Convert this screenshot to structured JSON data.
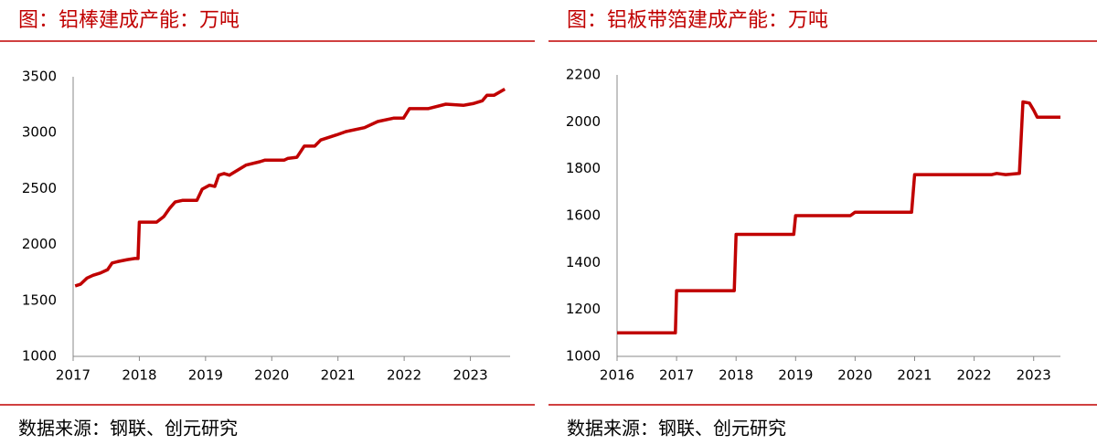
{
  "chart_data": [
    {
      "type": "line",
      "title": "图：铝棒建成产能：万吨",
      "source": "数据来源：钢联、创元研究",
      "color": "#c00000",
      "x": [
        2017.03,
        2017.11,
        2017.21,
        2017.3,
        2017.41,
        2017.52,
        2017.59,
        2017.69,
        2017.82,
        2017.93,
        2017.98,
        2018.0,
        2018.26,
        2018.37,
        2018.46,
        2018.54,
        2018.65,
        2018.87,
        2018.95,
        2019.06,
        2019.14,
        2019.2,
        2019.28,
        2019.36,
        2019.61,
        2019.82,
        2019.9,
        2020.19,
        2020.24,
        2020.38,
        2020.49,
        2020.65,
        2020.74,
        2020.98,
        2021.12,
        2021.4,
        2021.6,
        2021.84,
        2021.99,
        2022.08,
        2022.36,
        2022.63,
        2022.9,
        2023.04,
        2023.18,
        2023.25,
        2023.36,
        2023.52
      ],
      "series": [
        {
          "values": [
            1630,
            1645,
            1700,
            1725,
            1745,
            1775,
            1835,
            1850,
            1865,
            1875,
            1875,
            2200,
            2200,
            2250,
            2325,
            2380,
            2395,
            2395,
            2495,
            2530,
            2520,
            2620,
            2635,
            2620,
            2710,
            2740,
            2755,
            2755,
            2770,
            2780,
            2880,
            2880,
            2935,
            2980,
            3010,
            3045,
            3100,
            3130,
            3130,
            3215,
            3215,
            3255,
            3245,
            3260,
            3285,
            3335,
            3335,
            3390
          ]
        }
      ],
      "xlim": [
        2017,
        2023.6
      ],
      "xticks": [
        2017,
        2018,
        2019,
        2020,
        2021,
        2022,
        2023
      ],
      "ylim": [
        1000,
        3500
      ],
      "yticks": [
        1000,
        1500,
        2000,
        2500,
        3000,
        3500
      ]
    },
    {
      "type": "line",
      "title": "图：铝板带箔建成产能：万吨",
      "source": "数据来源：钢联、创元研究",
      "color": "#c00000",
      "x": [
        2016.0,
        2016.98,
        2017.0,
        2017.97,
        2018.0,
        2018.97,
        2019.0,
        2019.92,
        2020.0,
        2020.95,
        2021.0,
        2022.3,
        2022.38,
        2022.53,
        2022.76,
        2022.82,
        2022.93,
        2023.0,
        2023.06,
        2023.45
      ],
      "series": [
        {
          "values": [
            1100,
            1100,
            1280,
            1280,
            1520,
            1520,
            1600,
            1600,
            1615,
            1615,
            1775,
            1775,
            1780,
            1775,
            1780,
            2085,
            2080,
            2050,
            2020,
            2020
          ]
        }
      ],
      "xlim": [
        2016,
        2023.45
      ],
      "xticks": [
        2016,
        2017,
        2018,
        2019,
        2020,
        2021,
        2022,
        2023
      ],
      "ylim": [
        1000,
        2200
      ],
      "yticks": [
        1000,
        1200,
        1400,
        1600,
        1800,
        2000,
        2200
      ]
    }
  ]
}
